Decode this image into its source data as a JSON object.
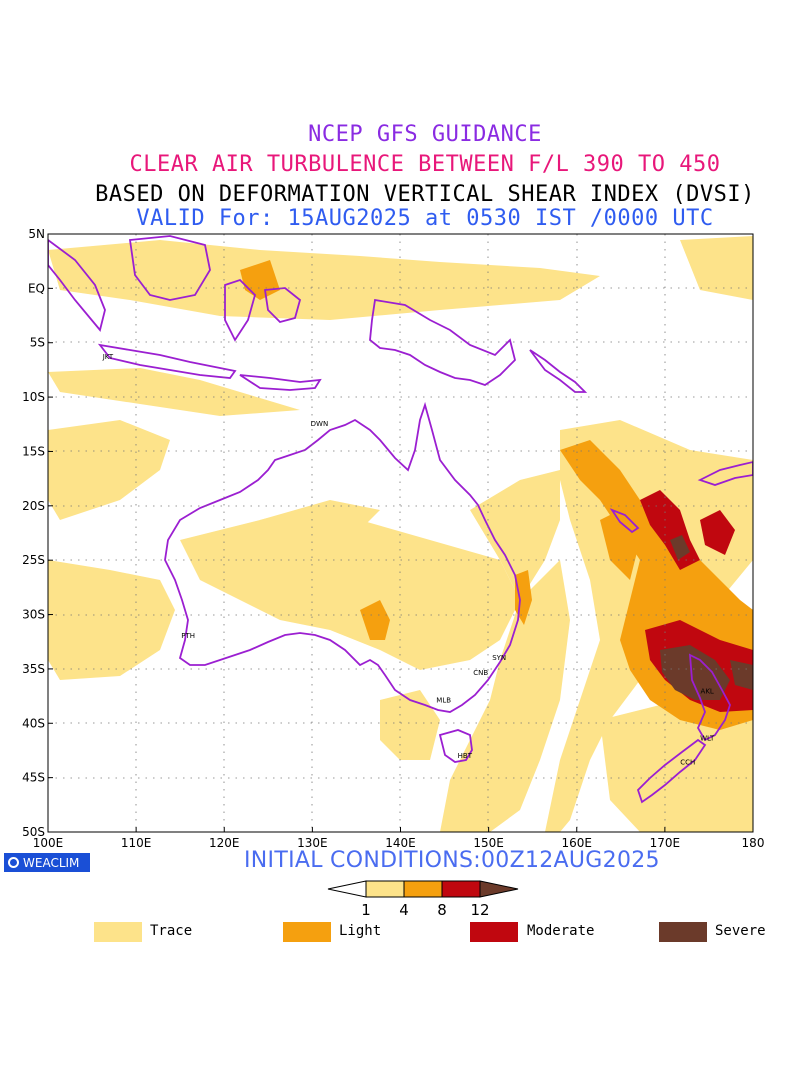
{
  "title": {
    "line1": "NCEP GFS GUIDANCE",
    "line2": "CLEAR AIR TURBULENCE BETWEEN F/L 390 TO 450",
    "line3": "BASED ON DEFORMATION VERTICAL SHEAR INDEX (DVSI)",
    "line4": "VALID For: 15AUG2025 at 0530 IST /0000 UTC"
  },
  "colors": {
    "line1": "#8a2be2",
    "line2": "#e8177a",
    "line3": "#000000",
    "line4": "#2f5cf0",
    "coast": "#9b1fd1",
    "trace": "#fde38a",
    "light": "#f5a00f",
    "moderate": "#c0070f",
    "severe": "#6b3a2a"
  },
  "map": {
    "lat_labels": [
      "5N",
      "EQ",
      "5S",
      "10S",
      "15S",
      "20S",
      "25S",
      "30S",
      "35S",
      "40S",
      "45S",
      "50S"
    ],
    "lon_labels": [
      "100E",
      "110E",
      "120E",
      "130E",
      "140E",
      "150E",
      "160E",
      "170E",
      "180"
    ],
    "lat_range": [
      -50,
      5
    ],
    "lon_range": [
      100,
      180
    ],
    "cities": [
      {
        "name": "JKT",
        "lon": 106.8,
        "lat": -6.2
      },
      {
        "name": "DWN",
        "lon": 130.8,
        "lat": -12.4
      },
      {
        "name": "PTH",
        "lon": 115.9,
        "lat": -31.9
      },
      {
        "name": "SYN",
        "lon": 151.2,
        "lat": -33.9
      },
      {
        "name": "CNB",
        "lon": 149.1,
        "lat": -35.3
      },
      {
        "name": "MLB",
        "lon": 144.9,
        "lat": -37.8
      },
      {
        "name": "HBT",
        "lon": 147.3,
        "lat": -42.9
      },
      {
        "name": "AKL",
        "lon": 174.8,
        "lat": -37.0
      },
      {
        "name": "WLT",
        "lon": 174.8,
        "lat": -41.3
      },
      {
        "name": "CCH",
        "lon": 172.6,
        "lat": -43.5
      }
    ]
  },
  "footer": {
    "logo": "WEACLIM",
    "initial": "INITIAL CONDITIONS:00Z12AUG2025"
  },
  "colorbar": {
    "ticks": [
      "1",
      "4",
      "8",
      "12"
    ]
  },
  "legend": [
    {
      "label": "Trace",
      "color": "#fde38a"
    },
    {
      "label": "Light",
      "color": "#f5a00f"
    },
    {
      "label": "Moderate",
      "color": "#c0070f"
    },
    {
      "label": "Severe",
      "color": "#6b3a2a"
    }
  ]
}
